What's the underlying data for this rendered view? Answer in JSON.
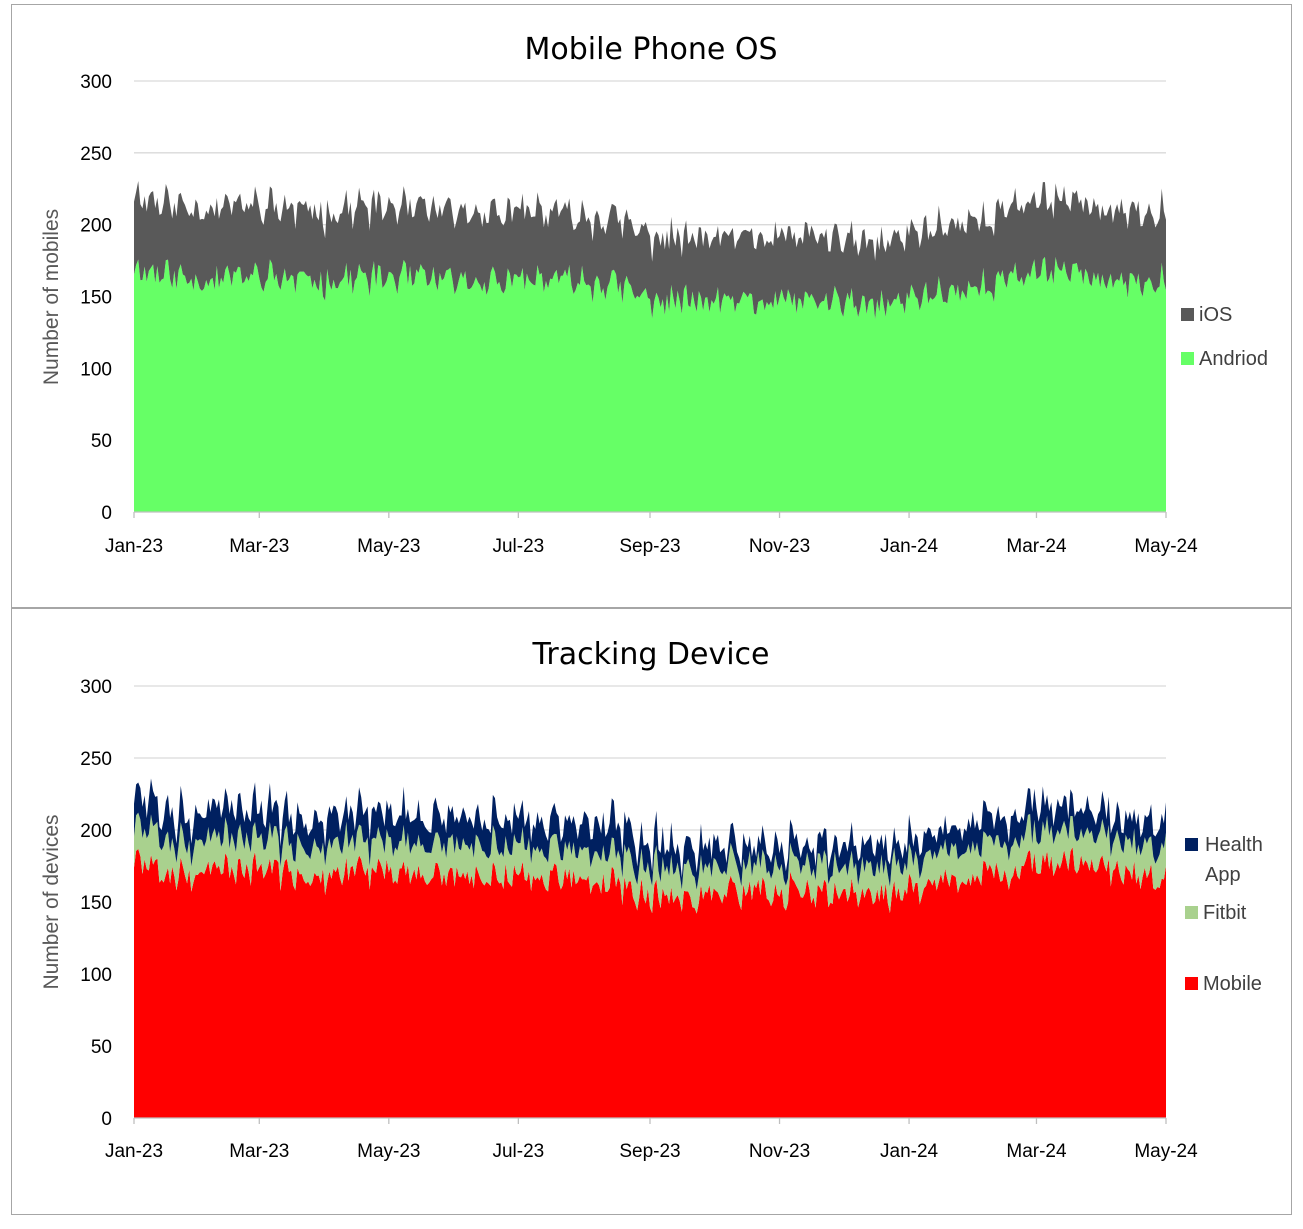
{
  "chart_data": [
    {
      "type": "area",
      "stacked": true,
      "title": "Mobile Phone OS",
      "ylabel": "Number of mobiles",
      "xlabel": "",
      "ylim": [
        0,
        300
      ],
      "yticks": [
        0,
        50,
        100,
        150,
        200,
        250,
        300
      ],
      "x_range": [
        "2023-01-01",
        "2024-05-01"
      ],
      "xticks": [
        {
          "date": "2023-01-01",
          "label": "Jan-23"
        },
        {
          "date": "2023-03-01",
          "label": "Mar-23"
        },
        {
          "date": "2023-05-01",
          "label": "May-23"
        },
        {
          "date": "2023-07-01",
          "label": "Jul-23"
        },
        {
          "date": "2023-09-01",
          "label": "Sep-23"
        },
        {
          "date": "2023-11-01",
          "label": "Nov-23"
        },
        {
          "date": "2024-01-01",
          "label": "Jan-24"
        },
        {
          "date": "2024-03-01",
          "label": "Mar-24"
        },
        {
          "date": "2024-05-01",
          "label": "May-24"
        }
      ],
      "grid": true,
      "legend": "right",
      "series": [
        {
          "name": "Andriod",
          "color": "#66ff66",
          "dates": [
            "2023-01-01",
            "2023-01-15",
            "2023-02-01",
            "2023-02-15",
            "2023-03-01",
            "2023-03-15",
            "2023-04-01",
            "2023-04-15",
            "2023-05-01",
            "2023-05-15",
            "2023-06-01",
            "2023-06-15",
            "2023-07-01",
            "2023-07-15",
            "2023-08-01",
            "2023-08-15",
            "2023-09-01",
            "2023-09-15",
            "2023-10-01",
            "2023-10-15",
            "2023-11-01",
            "2023-11-15",
            "2023-12-01",
            "2023-12-15",
            "2024-01-01",
            "2024-01-15",
            "2024-02-01",
            "2024-02-15",
            "2024-03-01",
            "2024-03-15",
            "2024-04-01",
            "2024-04-15",
            "2024-05-01"
          ],
          "values": [
            170,
            165,
            162,
            163,
            164,
            162,
            160,
            163,
            163,
            162,
            160,
            161,
            160,
            162,
            160,
            158,
            148,
            147,
            146,
            146,
            146,
            147,
            146,
            142,
            148,
            153,
            156,
            161,
            168,
            170,
            162,
            158,
            160
          ]
        },
        {
          "name": "iOS",
          "color": "#595959",
          "dates": [
            "2023-01-01",
            "2023-01-15",
            "2023-02-01",
            "2023-02-15",
            "2023-03-01",
            "2023-03-15",
            "2023-04-01",
            "2023-04-15",
            "2023-05-01",
            "2023-05-15",
            "2023-06-01",
            "2023-06-15",
            "2023-07-01",
            "2023-07-15",
            "2023-08-01",
            "2023-08-15",
            "2023-09-01",
            "2023-09-15",
            "2023-10-01",
            "2023-10-15",
            "2023-11-01",
            "2023-11-15",
            "2023-12-01",
            "2023-12-15",
            "2024-01-01",
            "2024-01-15",
            "2024-02-01",
            "2024-02-15",
            "2024-03-01",
            "2024-03-15",
            "2024-04-01",
            "2024-04-15",
            "2024-05-01"
          ],
          "values": [
            52,
            50,
            50,
            50,
            50,
            49,
            48,
            49,
            49,
            48,
            48,
            48,
            48,
            47,
            46,
            46,
            44,
            43,
            44,
            44,
            45,
            45,
            44,
            43,
            45,
            46,
            47,
            48,
            50,
            50,
            49,
            48,
            49
          ]
        }
      ]
    },
    {
      "type": "area",
      "stacked": true,
      "title": "Tracking Device",
      "ylabel": "Number of devices",
      "xlabel": "",
      "ylim": [
        0,
        300
      ],
      "yticks": [
        0,
        50,
        100,
        150,
        200,
        250,
        300
      ],
      "x_range": [
        "2023-01-01",
        "2024-05-01"
      ],
      "xticks": [
        {
          "date": "2023-01-01",
          "label": "Jan-23"
        },
        {
          "date": "2023-03-01",
          "label": "Mar-23"
        },
        {
          "date": "2023-05-01",
          "label": "May-23"
        },
        {
          "date": "2023-07-01",
          "label": "Jul-23"
        },
        {
          "date": "2023-09-01",
          "label": "Sep-23"
        },
        {
          "date": "2023-11-01",
          "label": "Nov-23"
        },
        {
          "date": "2024-01-01",
          "label": "Jan-24"
        },
        {
          "date": "2024-03-01",
          "label": "Mar-24"
        },
        {
          "date": "2024-05-01",
          "label": "May-24"
        }
      ],
      "grid": true,
      "legend": "right",
      "series": [
        {
          "name": "Mobile",
          "color": "#ff0000",
          "dates": [
            "2023-01-01",
            "2023-01-15",
            "2023-02-01",
            "2023-02-15",
            "2023-03-01",
            "2023-03-15",
            "2023-04-01",
            "2023-04-15",
            "2023-05-01",
            "2023-05-15",
            "2023-06-01",
            "2023-06-15",
            "2023-07-01",
            "2023-07-15",
            "2023-08-01",
            "2023-08-15",
            "2023-09-01",
            "2023-09-15",
            "2023-10-01",
            "2023-10-15",
            "2023-11-01",
            "2023-11-15",
            "2023-12-01",
            "2023-12-15",
            "2024-01-01",
            "2024-01-15",
            "2024-02-01",
            "2024-02-15",
            "2024-03-01",
            "2024-03-15",
            "2024-04-01",
            "2024-04-15",
            "2024-05-01"
          ],
          "values": [
            178,
            172,
            170,
            171,
            172,
            171,
            168,
            171,
            172,
            170,
            168,
            169,
            168,
            169,
            166,
            163,
            155,
            154,
            156,
            157,
            158,
            158,
            157,
            152,
            160,
            164,
            166,
            170,
            176,
            180,
            174,
            168,
            168
          ]
        },
        {
          "name": "Fitbit",
          "color": "#a9d18e",
          "dates": [
            "2023-01-01",
            "2023-01-15",
            "2023-02-01",
            "2023-02-15",
            "2023-03-01",
            "2023-03-15",
            "2023-04-01",
            "2023-04-15",
            "2023-05-01",
            "2023-05-15",
            "2023-06-01",
            "2023-06-15",
            "2023-07-01",
            "2023-07-15",
            "2023-08-01",
            "2023-08-15",
            "2023-09-01",
            "2023-09-15",
            "2023-10-01",
            "2023-10-15",
            "2023-11-01",
            "2023-11-15",
            "2023-12-01",
            "2023-12-15",
            "2024-01-01",
            "2024-01-15",
            "2024-02-01",
            "2024-02-15",
            "2024-03-01",
            "2024-03-15",
            "2024-04-01",
            "2024-04-15",
            "2024-05-01"
          ],
          "values": [
            24,
            23,
            22,
            22,
            22,
            21,
            21,
            21,
            21,
            21,
            21,
            21,
            21,
            21,
            21,
            21,
            20,
            20,
            19,
            19,
            19,
            20,
            19,
            19,
            19,
            20,
            21,
            21,
            22,
            22,
            22,
            21,
            22
          ]
        },
        {
          "name": "Health App",
          "color": "#002060",
          "dates": [
            "2023-01-01",
            "2023-01-15",
            "2023-02-01",
            "2023-02-15",
            "2023-03-01",
            "2023-03-15",
            "2023-04-01",
            "2023-04-15",
            "2023-05-01",
            "2023-05-15",
            "2023-06-01",
            "2023-06-15",
            "2023-07-01",
            "2023-07-15",
            "2023-08-01",
            "2023-08-15",
            "2023-09-01",
            "2023-09-15",
            "2023-10-01",
            "2023-10-15",
            "2023-11-01",
            "2023-11-15",
            "2023-12-01",
            "2023-12-15",
            "2024-01-01",
            "2024-01-15",
            "2024-02-01",
            "2024-02-15",
            "2024-03-01",
            "2024-03-15",
            "2024-04-01",
            "2024-04-15",
            "2024-05-01"
          ],
          "values": [
            20,
            20,
            20,
            20,
            20,
            19,
            19,
            20,
            19,
            19,
            19,
            19,
            19,
            19,
            19,
            20,
            17,
            16,
            15,
            14,
            14,
            14,
            14,
            14,
            14,
            15,
            16,
            17,
            20,
            18,
            15,
            17,
            19
          ]
        }
      ]
    }
  ]
}
